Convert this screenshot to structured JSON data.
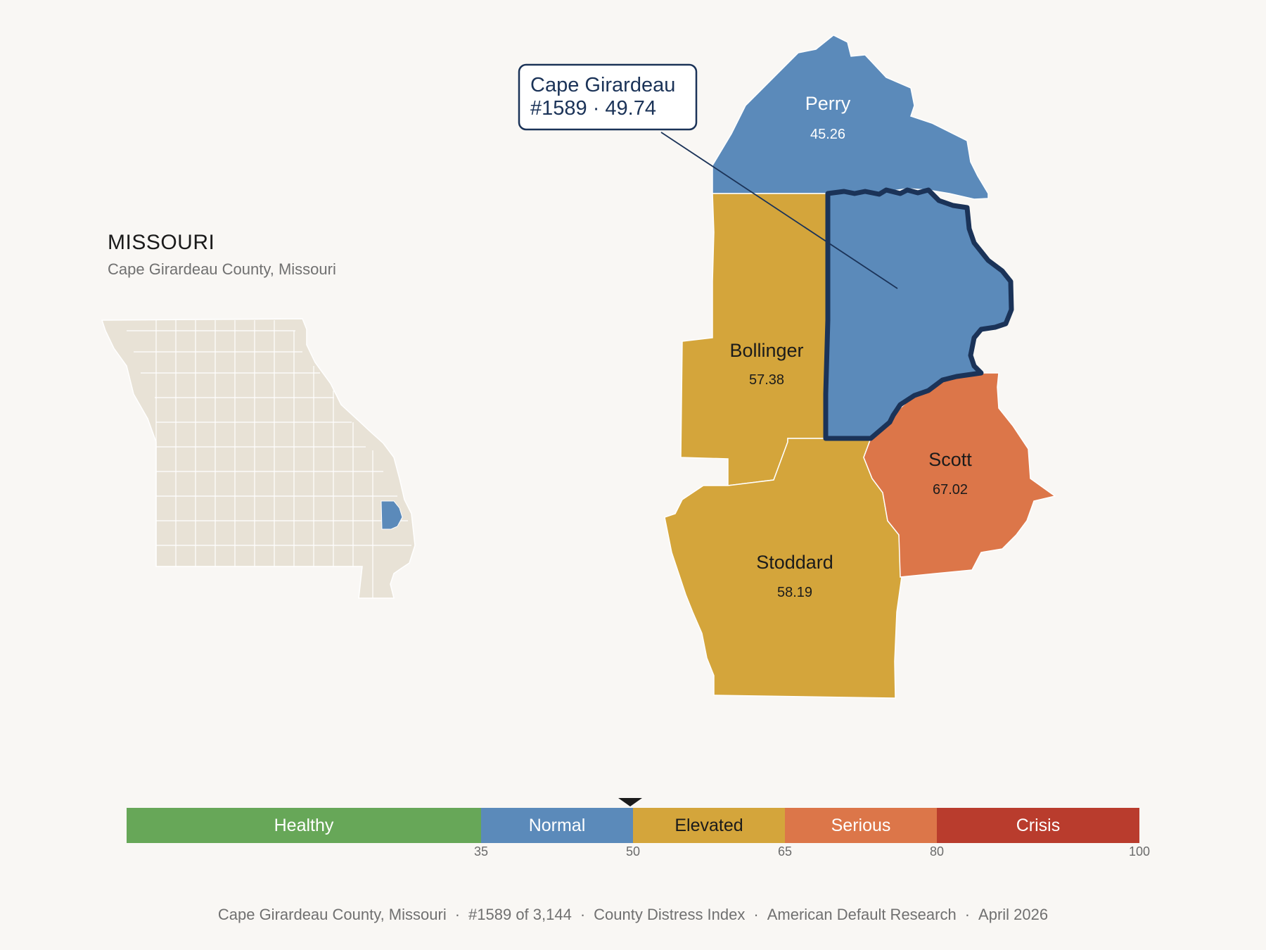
{
  "state": {
    "title": "MISSOURI",
    "subtitle": "Cape Girardeau County, Missouri"
  },
  "colors": {
    "background": "#f9f7f4",
    "state_fill": "#e8e2d6",
    "healthy": "#67a758",
    "normal": "#5b8aba",
    "elevated": "#d4a53b",
    "serious": "#dc7649",
    "crisis": "#b93c2d",
    "outline": "#1b3358"
  },
  "callout": {
    "line1": "Cape Girardeau",
    "line2": "#1589 · 49.74"
  },
  "counties": [
    {
      "name": "Perry",
      "value": "45.26",
      "category": "normal"
    },
    {
      "name": "Bollinger",
      "value": "57.38",
      "category": "elevated"
    },
    {
      "name": "Scott",
      "value": "67.02",
      "category": "serious"
    },
    {
      "name": "Stoddard",
      "value": "58.19",
      "category": "elevated"
    },
    {
      "name": "Cape Girardeau",
      "value": "49.74",
      "category": "normal",
      "highlighted": true
    }
  ],
  "scale": {
    "min": 0,
    "max": 100,
    "marker_value": 49.74,
    "segments": [
      {
        "label": "Healthy",
        "from": 0,
        "to": 35,
        "color": "#67a758",
        "text": "#ffffff"
      },
      {
        "label": "Normal",
        "from": 35,
        "to": 50,
        "color": "#5b8aba",
        "text": "#ffffff"
      },
      {
        "label": "Elevated",
        "from": 50,
        "to": 65,
        "color": "#d4a53b",
        "text": "#1b1b1b"
      },
      {
        "label": "Serious",
        "from": 65,
        "to": 80,
        "color": "#dc7649",
        "text": "#ffffff"
      },
      {
        "label": "Crisis",
        "from": 80,
        "to": 100,
        "color": "#b93c2d",
        "text": "#ffffff"
      }
    ],
    "ticks": [
      "35",
      "50",
      "65",
      "80",
      "100"
    ]
  },
  "footer": {
    "items": [
      "Cape Girardeau County, Missouri",
      "#1589 of 3,144",
      "County Distress Index",
      "American Default Research",
      "April 2026"
    ],
    "separator": "·"
  }
}
